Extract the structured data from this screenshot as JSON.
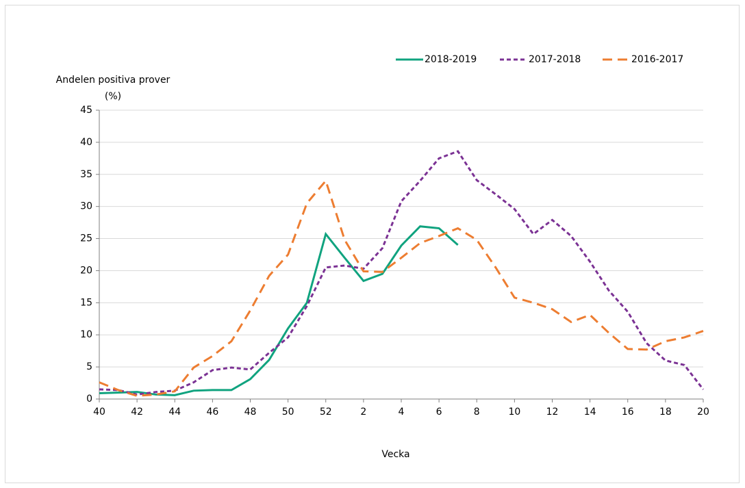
{
  "chart_data": {
    "type": "line",
    "ylabel": [
      "Andelen positiva prover",
      "(%)"
    ],
    "xlabel": "Vecka",
    "categories": [
      40,
      null,
      42,
      null,
      44,
      null,
      46,
      null,
      48,
      null,
      50,
      null,
      52,
      null,
      2,
      null,
      4,
      null,
      6,
      null,
      8,
      null,
      10,
      null,
      12,
      null,
      14,
      null,
      16,
      null,
      18,
      null,
      20
    ],
    "series": [
      {
        "name": "2018-2019",
        "color": "#10a37f",
        "dash": "solid",
        "values": [
          0.9,
          1.0,
          1.1,
          0.7,
          0.6,
          1.3,
          1.4,
          1.4,
          3.1,
          6.1,
          11.0,
          15.0,
          25.7,
          22.0,
          18.4,
          19.5,
          23.9,
          26.9,
          26.6,
          24.0,
          null,
          null,
          null,
          null,
          null,
          null,
          null,
          null,
          null,
          null,
          null,
          null,
          null
        ]
      },
      {
        "name": "2017-2018",
        "color": "#7b3294",
        "dash": "short",
        "values": [
          1.5,
          1.4,
          0.7,
          1.1,
          1.3,
          2.6,
          4.5,
          4.9,
          4.6,
          7.2,
          9.6,
          14.5,
          20.5,
          20.8,
          20.3,
          23.5,
          30.8,
          34.0,
          37.5,
          38.6,
          34.1,
          31.9,
          29.6,
          25.7,
          27.9,
          25.4,
          21.4,
          16.9,
          13.6,
          8.7,
          6.0,
          5.3,
          1.5
        ]
      },
      {
        "name": "2016-2017",
        "color": "#ed7d31",
        "dash": "long",
        "values": [
          2.6,
          1.4,
          0.5,
          0.7,
          1.2,
          4.9,
          6.7,
          9.0,
          13.8,
          19.2,
          22.5,
          30.5,
          34.0,
          24.8,
          19.9,
          19.8,
          22.0,
          24.3,
          25.4,
          26.6,
          24.8,
          20.5,
          15.8,
          15.0,
          14.0,
          12.0,
          13.1,
          10.3,
          7.8,
          7.7,
          9.0,
          9.6,
          10.6
        ]
      }
    ],
    "ylim": [
      0,
      45
    ],
    "yticks": [
      0,
      5,
      10,
      15,
      20,
      25,
      30,
      35,
      40,
      45
    ],
    "grid": true,
    "legend": "top-right"
  }
}
